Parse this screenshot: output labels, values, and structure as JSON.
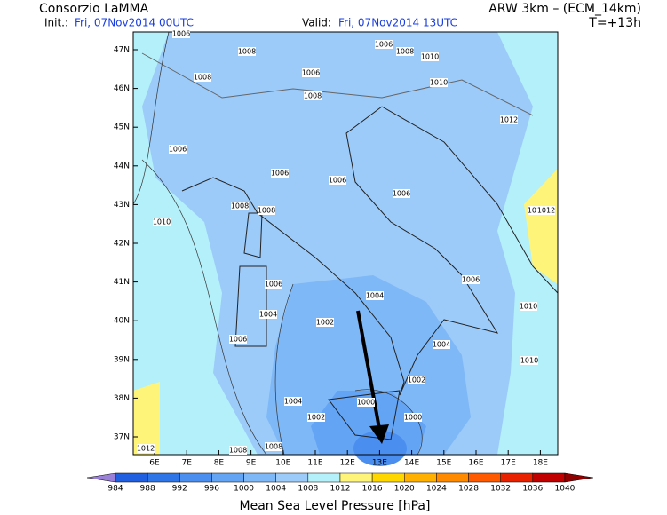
{
  "header": {
    "title": "Consorzio LaMMA",
    "init_label": "Init.:",
    "init_value": "Fri, 07Nov2014 00UTC",
    "model": "ARW 3km – (ECM_14km)",
    "valid_label": "Valid:",
    "valid_value": "Fri, 07Nov2014 13UTC",
    "lead_time": "T=+13h"
  },
  "map": {
    "lat_labels": [
      "47N",
      "46N",
      "45N",
      "44N",
      "43N",
      "42N",
      "41N",
      "40N",
      "39N",
      "38N",
      "37N"
    ],
    "lon_labels": [
      "6E",
      "7E",
      "8E",
      "9E",
      "10E",
      "11E",
      "12E",
      "13E",
      "14E",
      "15E",
      "16E",
      "17E",
      "18E"
    ],
    "isobar_labels": [
      "1006",
      "1008",
      "1008",
      "1006",
      "1008",
      "1006",
      "1008",
      "1010",
      "1010",
      "1012",
      "1006",
      "1006",
      "1006",
      "1008",
      "1008",
      "1010",
      "1006",
      "1004",
      "1002",
      "1006",
      "1006",
      "1004",
      "1002",
      "1000",
      "1004",
      "1006",
      "1010",
      "1004",
      "1002",
      "1000",
      "1008",
      "1010",
      "1012",
      "1012",
      "1012",
      "1008"
    ]
  },
  "colorbar": {
    "ticks": [
      "984",
      "988",
      "992",
      "996",
      "1000",
      "1004",
      "1008",
      "1012",
      "1016",
      "1020",
      "1024",
      "1028",
      "1032",
      "1036",
      "1040"
    ],
    "colors": [
      "#9a80d8",
      "#1f5fe0",
      "#2e75e8",
      "#4a8ff0",
      "#64a4f4",
      "#7fb8f7",
      "#9ccbf9",
      "#b4f0fa",
      "#fff47a",
      "#ffd700",
      "#ffb000",
      "#ff8a00",
      "#ff5a00",
      "#e82200",
      "#c00000",
      "#900000"
    ],
    "title": "Mean Sea Level Pressure [hPa]"
  }
}
